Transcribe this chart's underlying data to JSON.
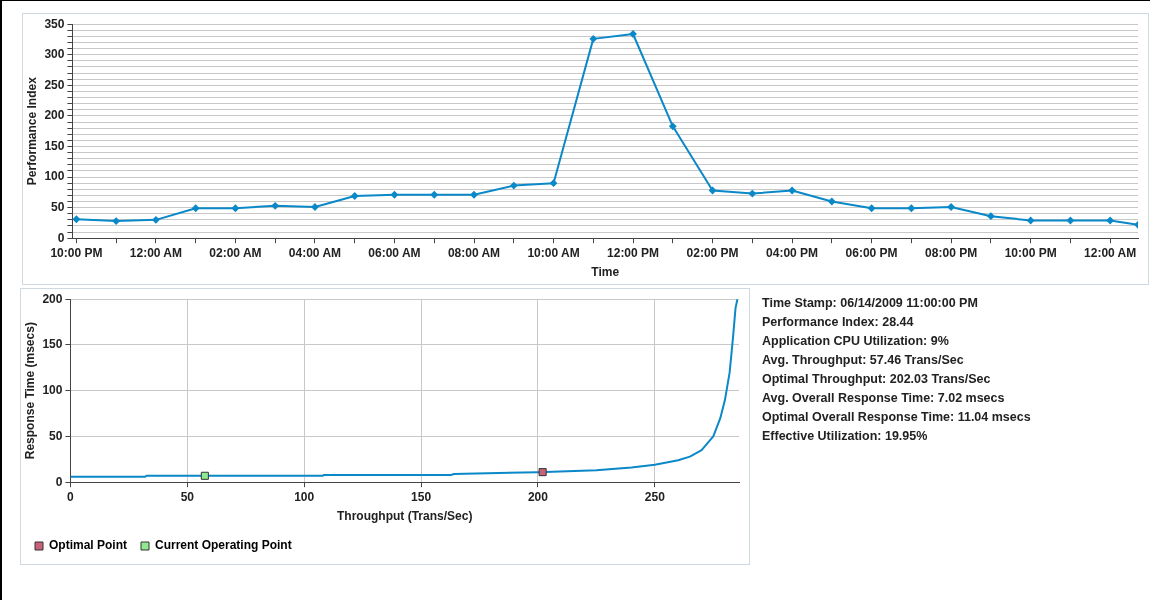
{
  "chart_data": [
    {
      "type": "line",
      "xlabel": "Time",
      "ylabel": "Performance Index",
      "x": [
        "2009-06-14T22:00",
        "2009-06-14T23:00",
        "2009-06-15T00:00",
        "2009-06-15T01:00",
        "2009-06-15T02:00",
        "2009-06-15T03:00",
        "2009-06-15T04:00",
        "2009-06-15T05:00",
        "2009-06-15T06:00",
        "2009-06-15T07:00",
        "2009-06-15T08:00",
        "2009-06-15T09:00",
        "2009-06-15T10:00",
        "2009-06-15T11:00",
        "2009-06-15T12:00",
        "2009-06-15T13:00",
        "2009-06-15T14:00",
        "2009-06-15T15:00",
        "2009-06-15T16:00",
        "2009-06-15T17:00",
        "2009-06-15T18:00",
        "2009-06-15T19:00",
        "2009-06-15T20:00",
        "2009-06-15T21:00",
        "2009-06-15T22:00",
        "2009-06-15T23:00",
        "2009-06-16T00:00",
        "2009-06-16T00:42"
      ],
      "series": [
        {
          "color": "#0a88c8",
          "values": [
            31,
            28,
            30,
            49,
            49,
            53,
            51,
            69,
            71,
            71,
            71,
            86,
            90,
            326,
            334,
            183,
            78,
            73,
            78,
            60,
            49,
            49,
            51,
            36,
            29,
            29,
            29,
            22
          ]
        }
      ],
      "xlim": [
        "2009-06-14T21:54",
        "2009-06-16T00:42"
      ],
      "xticks": [
        {
          "value": "2009-06-14T22:00",
          "label": "10:00 PM"
        },
        {
          "value": "2009-06-14T23:00",
          "label": null
        },
        {
          "value": "2009-06-15T00:00",
          "label": "12:00 AM"
        },
        {
          "value": "2009-06-15T01:00",
          "label": null
        },
        {
          "value": "2009-06-15T02:00",
          "label": "02:00 AM"
        },
        {
          "value": "2009-06-15T03:00",
          "label": null
        },
        {
          "value": "2009-06-15T04:00",
          "label": "04:00 AM"
        },
        {
          "value": "2009-06-15T05:00",
          "label": null
        },
        {
          "value": "2009-06-15T06:00",
          "label": "06:00 AM"
        },
        {
          "value": "2009-06-15T07:00",
          "label": null
        },
        {
          "value": "2009-06-15T08:00",
          "label": "08:00 AM"
        },
        {
          "value": "2009-06-15T09:00",
          "label": null
        },
        {
          "value": "2009-06-15T10:00",
          "label": "10:00 AM"
        },
        {
          "value": "2009-06-15T11:00",
          "label": null
        },
        {
          "value": "2009-06-15T12:00",
          "label": "12:00 PM"
        },
        {
          "value": "2009-06-15T13:00",
          "label": null
        },
        {
          "value": "2009-06-15T14:00",
          "label": "02:00 PM"
        },
        {
          "value": "2009-06-15T15:00",
          "label": null
        },
        {
          "value": "2009-06-15T16:00",
          "label": "04:00 PM"
        },
        {
          "value": "2009-06-15T17:00",
          "label": null
        },
        {
          "value": "2009-06-15T18:00",
          "label": "06:00 PM"
        },
        {
          "value": "2009-06-15T19:00",
          "label": null
        },
        {
          "value": "2009-06-15T20:00",
          "label": "08:00 PM"
        },
        {
          "value": "2009-06-15T21:00",
          "label": null
        },
        {
          "value": "2009-06-15T22:00",
          "label": "10:00 PM"
        },
        {
          "value": "2009-06-15T23:00",
          "label": null
        },
        {
          "value": "2009-06-16T00:00",
          "label": "12:00 AM"
        }
      ],
      "ylim": [
        0,
        350
      ],
      "yticks": [
        0,
        {
          "value": 10,
          "label": null
        },
        {
          "value": 20,
          "label": null
        },
        {
          "value": 30,
          "label": null
        },
        {
          "value": 40,
          "label": null
        },
        50,
        {
          "value": 60,
          "label": null
        },
        {
          "value": 70,
          "label": null
        },
        {
          "value": 80,
          "label": null
        },
        {
          "value": 90,
          "label": null
        },
        100,
        {
          "value": 110,
          "label": null
        },
        {
          "value": 120,
          "label": null
        },
        {
          "value": 130,
          "label": null
        },
        {
          "value": 140,
          "label": null
        },
        150,
        {
          "value": 160,
          "label": null
        },
        {
          "value": 170,
          "label": null
        },
        {
          "value": 180,
          "label": null
        },
        {
          "value": 190,
          "label": null
        },
        200,
        {
          "value": 210,
          "label": null
        },
        {
          "value": 220,
          "label": null
        },
        {
          "value": 230,
          "label": null
        },
        {
          "value": 240,
          "label": null
        },
        250,
        {
          "value": 260,
          "label": null
        },
        {
          "value": 270,
          "label": null
        },
        {
          "value": 280,
          "label": null
        },
        {
          "value": 290,
          "label": null
        },
        300,
        {
          "value": 310,
          "label": null
        },
        {
          "value": 320,
          "label": null
        },
        {
          "value": 330,
          "label": null
        },
        {
          "value": 340,
          "label": null
        },
        350
      ],
      "grid": "y",
      "marker": "diamond",
      "line_style": "solid"
    },
    {
      "type": "line",
      "xlabel": "Throughput (Trans/Sec)",
      "ylabel": "Response Time (msecs)",
      "series": [
        {
          "color": "#0a88c8",
          "marker": "none",
          "x": [
            0,
            32,
            32.5,
            108,
            108.5,
            163,
            164,
            200,
            225,
            240,
            250,
            260,
            265,
            270,
            275,
            278,
            280,
            282,
            283.5,
            284.5,
            285.3
          ],
          "values": [
            6,
            6,
            7,
            7,
            8,
            8,
            9,
            11,
            13,
            16,
            19,
            24,
            28,
            35,
            50,
            70,
            90,
            120,
            160,
            190,
            200
          ]
        },
        {
          "type": "scatter",
          "name": "Optimal Point",
          "color": "#c8607a",
          "marker": "square",
          "x": [
            202
          ],
          "values": [
            11
          ]
        },
        {
          "type": "scatter",
          "name": "Current Operating Point",
          "color": "#90e890",
          "marker": "square",
          "x": [
            57.5
          ],
          "values": [
            7
          ]
        }
      ],
      "xlim": [
        0,
        286
      ],
      "xticks": [
        0,
        50,
        100,
        150,
        200,
        250
      ],
      "ylim": [
        0,
        200
      ],
      "yticks": [
        0,
        50,
        100,
        150,
        200
      ],
      "grid": true,
      "legend": "bottom"
    },
    {
      "type": "other",
      "annotations": [
        "Time Stamp: 06/14/2009 11:00:00 PM",
        "Performance Index: 28.44",
        "Application CPU Utilization: 9%",
        "Avg. Throughput: 57.46 Trans/Sec",
        "Optimal Throughput: 202.03 Trans/Sec",
        "Avg. Overall Response Time: 7.02 msecs",
        "Optimal Overall Response Time: 11.04 msecs",
        "Effective Utilization: 19.95%"
      ]
    }
  ]
}
